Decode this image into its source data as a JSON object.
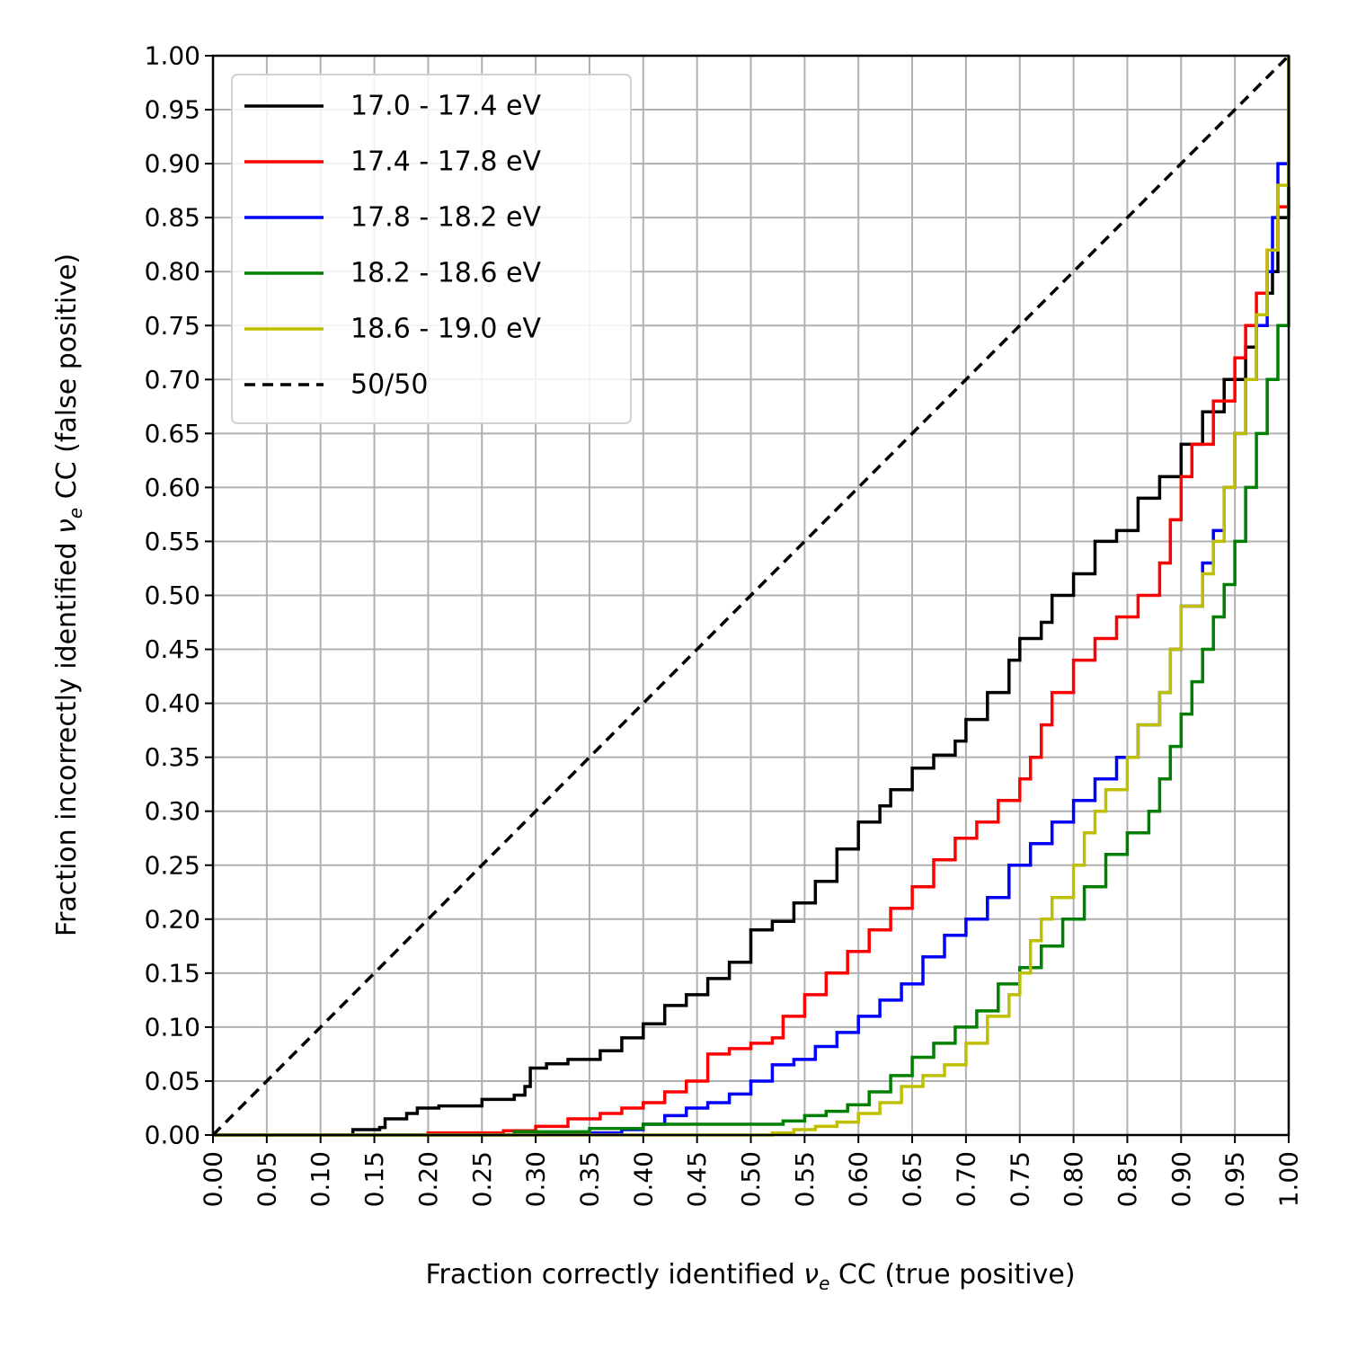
{
  "chart_data": {
    "type": "line",
    "xlabel_prefix": "Fraction correctly identified ",
    "xlabel_symbol": "ν",
    "xlabel_subscript": "e",
    "xlabel_suffix": " CC (true positive)",
    "ylabel_prefix": "Fraction incorrectly identified ",
    "ylabel_symbol": "ν",
    "ylabel_subscript": "e",
    "ylabel_suffix": " CC (false positive)",
    "xlim": [
      0,
      1
    ],
    "ylim": [
      0,
      1
    ],
    "x_ticks": [
      "0.00",
      "0.05",
      "0.10",
      "0.15",
      "0.20",
      "0.25",
      "0.30",
      "0.35",
      "0.40",
      "0.45",
      "0.50",
      "0.55",
      "0.60",
      "0.65",
      "0.70",
      "0.75",
      "0.80",
      "0.85",
      "0.90",
      "0.95",
      "1.00"
    ],
    "y_ticks": [
      "0.00",
      "0.05",
      "0.10",
      "0.15",
      "0.20",
      "0.25",
      "0.30",
      "0.35",
      "0.40",
      "0.45",
      "0.50",
      "0.55",
      "0.60",
      "0.65",
      "0.70",
      "0.75",
      "0.80",
      "0.85",
      "0.90",
      "0.95",
      "1.00"
    ],
    "grid": true,
    "legend_position": "top-left",
    "series": [
      {
        "name": "17.0 - 17.4 eV",
        "color": "#000000",
        "dashed": false,
        "points": [
          [
            0,
            0
          ],
          [
            0.12,
            0
          ],
          [
            0.13,
            0.005
          ],
          [
            0.155,
            0.007
          ],
          [
            0.16,
            0.015
          ],
          [
            0.18,
            0.02
          ],
          [
            0.19,
            0.025
          ],
          [
            0.21,
            0.027
          ],
          [
            0.25,
            0.033
          ],
          [
            0.28,
            0.037
          ],
          [
            0.29,
            0.045
          ],
          [
            0.295,
            0.062
          ],
          [
            0.31,
            0.066
          ],
          [
            0.33,
            0.07
          ],
          [
            0.36,
            0.078
          ],
          [
            0.38,
            0.09
          ],
          [
            0.4,
            0.103
          ],
          [
            0.42,
            0.12
          ],
          [
            0.44,
            0.13
          ],
          [
            0.46,
            0.145
          ],
          [
            0.48,
            0.16
          ],
          [
            0.5,
            0.19
          ],
          [
            0.52,
            0.198
          ],
          [
            0.54,
            0.215
          ],
          [
            0.56,
            0.235
          ],
          [
            0.58,
            0.265
          ],
          [
            0.6,
            0.29
          ],
          [
            0.62,
            0.305
          ],
          [
            0.63,
            0.32
          ],
          [
            0.65,
            0.34
          ],
          [
            0.67,
            0.352
          ],
          [
            0.69,
            0.365
          ],
          [
            0.7,
            0.385
          ],
          [
            0.72,
            0.41
          ],
          [
            0.74,
            0.44
          ],
          [
            0.75,
            0.46
          ],
          [
            0.77,
            0.475
          ],
          [
            0.78,
            0.5
          ],
          [
            0.8,
            0.52
          ],
          [
            0.82,
            0.55
          ],
          [
            0.84,
            0.56
          ],
          [
            0.86,
            0.59
          ],
          [
            0.88,
            0.61
          ],
          [
            0.9,
            0.64
          ],
          [
            0.92,
            0.67
          ],
          [
            0.94,
            0.7
          ],
          [
            0.96,
            0.73
          ],
          [
            0.97,
            0.76
          ],
          [
            0.98,
            0.78
          ],
          [
            0.985,
            0.8
          ],
          [
            0.99,
            0.85
          ],
          [
            1.0,
            0.88
          ],
          [
            1.0,
            1.0
          ]
        ]
      },
      {
        "name": "17.4 - 17.8 eV",
        "color": "#ff0000",
        "dashed": false,
        "points": [
          [
            0,
            0
          ],
          [
            0.14,
            0
          ],
          [
            0.2,
            0.002
          ],
          [
            0.27,
            0.004
          ],
          [
            0.3,
            0.008
          ],
          [
            0.33,
            0.015
          ],
          [
            0.36,
            0.02
          ],
          [
            0.38,
            0.025
          ],
          [
            0.4,
            0.03
          ],
          [
            0.42,
            0.04
          ],
          [
            0.44,
            0.05
          ],
          [
            0.46,
            0.075
          ],
          [
            0.48,
            0.08
          ],
          [
            0.5,
            0.085
          ],
          [
            0.52,
            0.09
          ],
          [
            0.53,
            0.11
          ],
          [
            0.55,
            0.13
          ],
          [
            0.57,
            0.15
          ],
          [
            0.59,
            0.17
          ],
          [
            0.61,
            0.19
          ],
          [
            0.63,
            0.21
          ],
          [
            0.65,
            0.23
          ],
          [
            0.67,
            0.255
          ],
          [
            0.69,
            0.275
          ],
          [
            0.71,
            0.29
          ],
          [
            0.73,
            0.31
          ],
          [
            0.75,
            0.33
          ],
          [
            0.76,
            0.35
          ],
          [
            0.77,
            0.38
          ],
          [
            0.78,
            0.41
          ],
          [
            0.8,
            0.44
          ],
          [
            0.82,
            0.46
          ],
          [
            0.84,
            0.48
          ],
          [
            0.86,
            0.5
          ],
          [
            0.88,
            0.53
          ],
          [
            0.89,
            0.57
          ],
          [
            0.9,
            0.61
          ],
          [
            0.91,
            0.64
          ],
          [
            0.93,
            0.68
          ],
          [
            0.95,
            0.72
          ],
          [
            0.96,
            0.75
          ],
          [
            0.97,
            0.78
          ],
          [
            0.98,
            0.82
          ],
          [
            0.99,
            0.86
          ],
          [
            1.0,
            0.9
          ],
          [
            1.0,
            1.0
          ]
        ]
      },
      {
        "name": "17.8 - 18.2 eV",
        "color": "#0000ff",
        "dashed": false,
        "points": [
          [
            0,
            0
          ],
          [
            0.18,
            0
          ],
          [
            0.3,
            0.002
          ],
          [
            0.38,
            0.005
          ],
          [
            0.4,
            0.01
          ],
          [
            0.42,
            0.018
          ],
          [
            0.44,
            0.025
          ],
          [
            0.46,
            0.03
          ],
          [
            0.48,
            0.038
          ],
          [
            0.5,
            0.05
          ],
          [
            0.52,
            0.065
          ],
          [
            0.54,
            0.07
          ],
          [
            0.56,
            0.082
          ],
          [
            0.58,
            0.095
          ],
          [
            0.6,
            0.11
          ],
          [
            0.62,
            0.125
          ],
          [
            0.64,
            0.14
          ],
          [
            0.66,
            0.165
          ],
          [
            0.68,
            0.185
          ],
          [
            0.7,
            0.2
          ],
          [
            0.72,
            0.22
          ],
          [
            0.74,
            0.25
          ],
          [
            0.76,
            0.27
          ],
          [
            0.78,
            0.29
          ],
          [
            0.8,
            0.31
          ],
          [
            0.82,
            0.33
          ],
          [
            0.84,
            0.35
          ],
          [
            0.86,
            0.38
          ],
          [
            0.88,
            0.41
          ],
          [
            0.89,
            0.45
          ],
          [
            0.9,
            0.49
          ],
          [
            0.92,
            0.53
          ],
          [
            0.93,
            0.56
          ],
          [
            0.94,
            0.6
          ],
          [
            0.95,
            0.65
          ],
          [
            0.96,
            0.7
          ],
          [
            0.97,
            0.75
          ],
          [
            0.98,
            0.8
          ],
          [
            0.985,
            0.85
          ],
          [
            0.99,
            0.9
          ],
          [
            1.0,
            0.95
          ],
          [
            1.0,
            1.0
          ]
        ]
      },
      {
        "name": "18.2 - 18.6 eV",
        "color": "#008000",
        "dashed": false,
        "points": [
          [
            0,
            0
          ],
          [
            0.2,
            0
          ],
          [
            0.28,
            0.003
          ],
          [
            0.35,
            0.006
          ],
          [
            0.4,
            0.01
          ],
          [
            0.52,
            0.01
          ],
          [
            0.53,
            0.013
          ],
          [
            0.55,
            0.018
          ],
          [
            0.57,
            0.022
          ],
          [
            0.59,
            0.028
          ],
          [
            0.61,
            0.04
          ],
          [
            0.63,
            0.055
          ],
          [
            0.65,
            0.072
          ],
          [
            0.67,
            0.085
          ],
          [
            0.69,
            0.1
          ],
          [
            0.71,
            0.115
          ],
          [
            0.73,
            0.14
          ],
          [
            0.75,
            0.155
          ],
          [
            0.77,
            0.175
          ],
          [
            0.79,
            0.2
          ],
          [
            0.81,
            0.23
          ],
          [
            0.83,
            0.26
          ],
          [
            0.85,
            0.28
          ],
          [
            0.87,
            0.3
          ],
          [
            0.88,
            0.33
          ],
          [
            0.89,
            0.36
          ],
          [
            0.9,
            0.39
          ],
          [
            0.91,
            0.42
          ],
          [
            0.92,
            0.45
          ],
          [
            0.93,
            0.48
          ],
          [
            0.94,
            0.51
          ],
          [
            0.95,
            0.55
          ],
          [
            0.96,
            0.6
          ],
          [
            0.97,
            0.65
          ],
          [
            0.98,
            0.7
          ],
          [
            0.99,
            0.75
          ],
          [
            1.0,
            0.78
          ],
          [
            1.0,
            1.0
          ]
        ]
      },
      {
        "name": "18.6 - 19.0 eV",
        "color": "#bfbf00",
        "dashed": false,
        "points": [
          [
            0,
            0
          ],
          [
            0.5,
            0
          ],
          [
            0.52,
            0.002
          ],
          [
            0.54,
            0.005
          ],
          [
            0.56,
            0.008
          ],
          [
            0.58,
            0.012
          ],
          [
            0.6,
            0.02
          ],
          [
            0.62,
            0.03
          ],
          [
            0.64,
            0.045
          ],
          [
            0.66,
            0.055
          ],
          [
            0.68,
            0.065
          ],
          [
            0.7,
            0.085
          ],
          [
            0.72,
            0.11
          ],
          [
            0.74,
            0.13
          ],
          [
            0.75,
            0.15
          ],
          [
            0.76,
            0.18
          ],
          [
            0.77,
            0.2
          ],
          [
            0.78,
            0.22
          ],
          [
            0.8,
            0.25
          ],
          [
            0.81,
            0.28
          ],
          [
            0.82,
            0.3
          ],
          [
            0.83,
            0.32
          ],
          [
            0.85,
            0.35
          ],
          [
            0.86,
            0.38
          ],
          [
            0.88,
            0.41
          ],
          [
            0.89,
            0.45
          ],
          [
            0.9,
            0.49
          ],
          [
            0.92,
            0.52
          ],
          [
            0.93,
            0.55
          ],
          [
            0.94,
            0.6
          ],
          [
            0.95,
            0.65
          ],
          [
            0.96,
            0.7
          ],
          [
            0.97,
            0.76
          ],
          [
            0.98,
            0.82
          ],
          [
            0.99,
            0.88
          ],
          [
            1.0,
            0.95
          ],
          [
            1.0,
            1.0
          ]
        ]
      },
      {
        "name": "50/50",
        "color": "#000000",
        "dashed": true,
        "points": [
          [
            0,
            0
          ],
          [
            1,
            1
          ]
        ]
      }
    ]
  }
}
